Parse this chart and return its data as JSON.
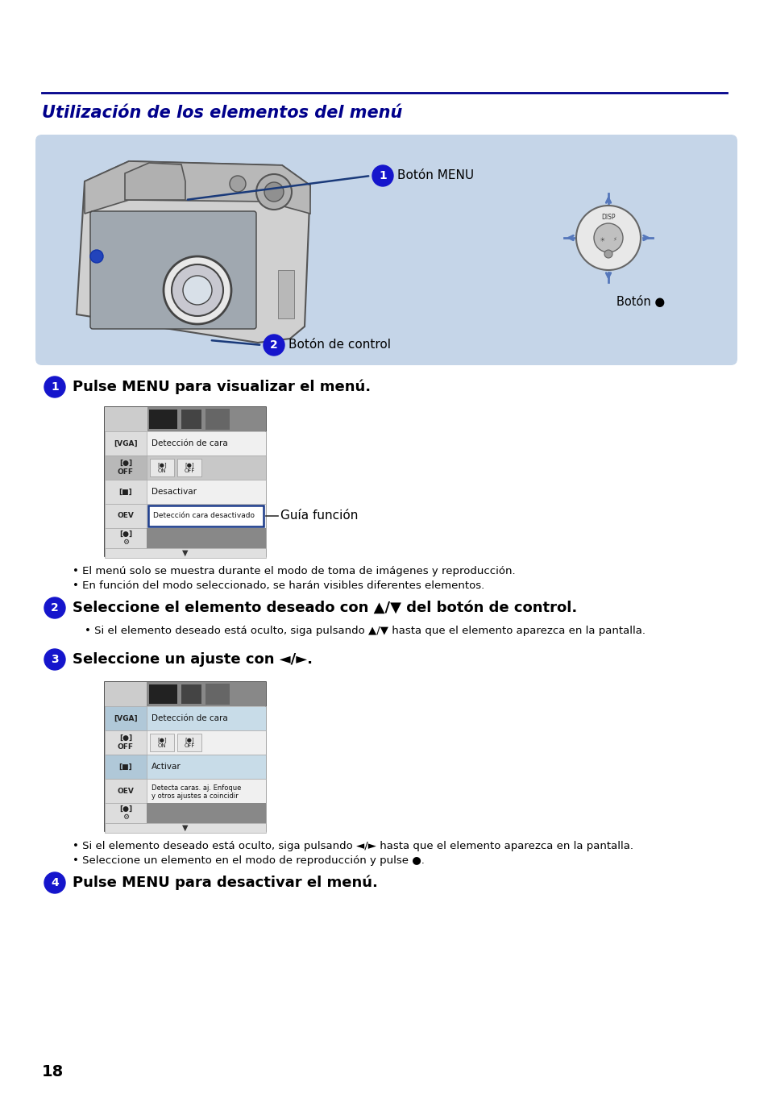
{
  "title": "Utilización de los elementos del menú",
  "title_color": "#00008B",
  "bg_color": "#ffffff",
  "page_number": "18",
  "blue_box_color": "#c5d5e8",
  "section1_heading": "Pulse MENU para visualizar el menú.",
  "section2_heading": "Seleccione el elemento deseado con ▲/▼ del botón de control.",
  "section3_heading": "Seleccione un ajuste con ◄/►.",
  "section4_heading": "Pulse MENU para desactivar el menú.",
  "bullet1a": "El menú solo se muestra durante el modo de toma de imágenes y reproducción.",
  "bullet1b": "En función del modo seleccionado, se harán visibles diferentes elementos.",
  "bullet2": "Si el elemento deseado está oculto, siga pulsando ▲/▼ hasta que el elemento aparezca en la pantalla.",
  "bullet3a": "Si el elemento deseado está oculto, siga pulsando ◄/► hasta que el elemento aparezca en la pantalla.",
  "bullet3b": "Seleccione un elemento en el modo de reproducción y pulse ●.",
  "label_boton_menu": "Botón MENU",
  "label_boton": "Botón ●",
  "label_boton_control": "Botón de control",
  "label_guia": "Guía función",
  "label_deteccion": "Detección de cara",
  "label_desactivar": "Desactivar",
  "label_deteccion_desactivado": "Detección cara desactivado",
  "label_activar": "Activar",
  "label_detecta": "Detecta caras. aj. Enfoque\ny otros ajustes a coincidir",
  "disp_text": "DISP"
}
